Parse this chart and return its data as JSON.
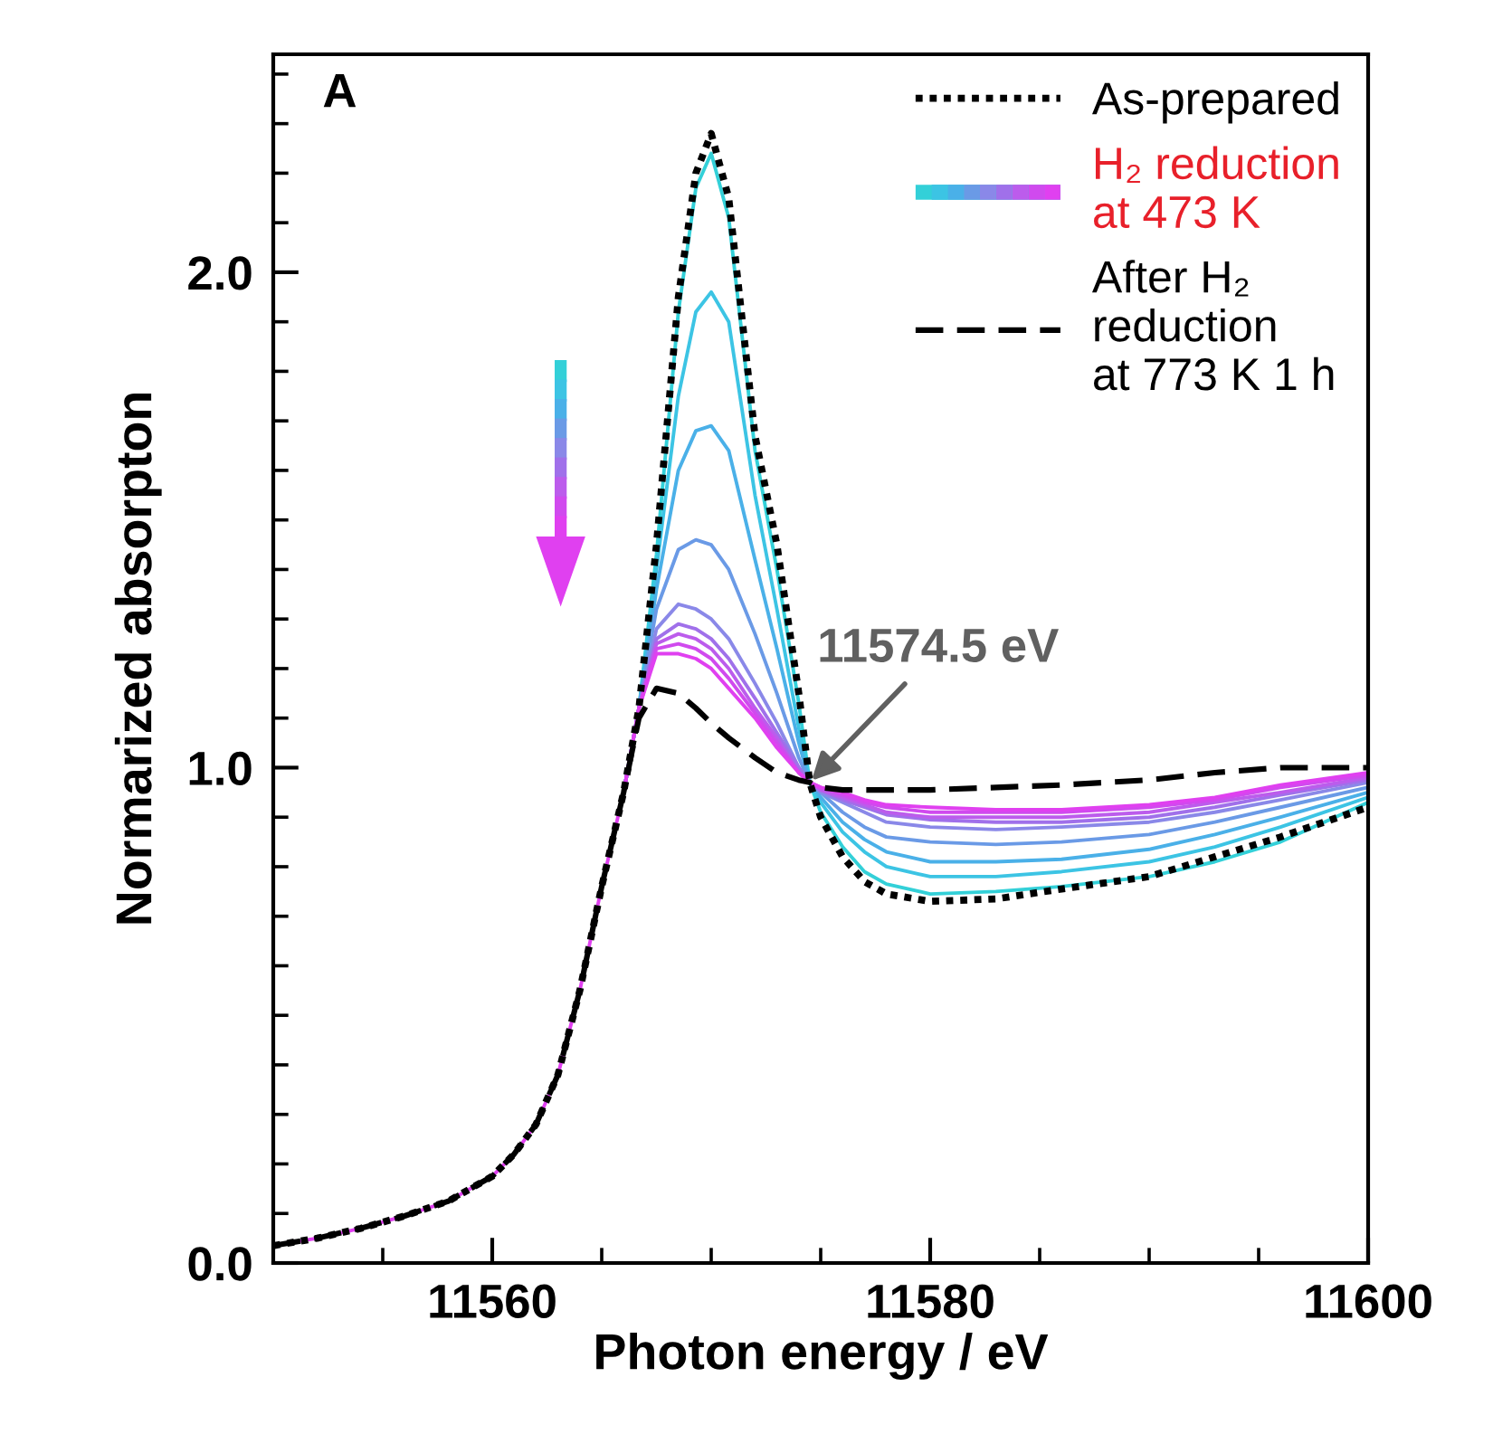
{
  "chart_data": {
    "type": "line",
    "xlabel": "Photon energy / eV",
    "ylabel": "Normarized absorpton",
    "x": [
      11550,
      11552,
      11554,
      11556,
      11558,
      11560,
      11561,
      11562,
      11563,
      11564,
      11565,
      11566,
      11566.7,
      11567.5,
      11568.5,
      11569.3,
      11570,
      11570.8,
      11572,
      11573,
      11574,
      11574.5,
      11575,
      11576,
      11577,
      11578,
      11580,
      11583,
      11586,
      11590,
      11593,
      11596,
      11600
    ],
    "series": [
      {
        "name": "As-prepared",
        "color": "#000000",
        "line_style": "dotted",
        "values": [
          0.035,
          0.05,
          0.07,
          0.095,
          0.125,
          0.175,
          0.22,
          0.28,
          0.38,
          0.55,
          0.76,
          0.95,
          1.12,
          1.45,
          1.95,
          2.2,
          2.28,
          2.15,
          1.67,
          1.45,
          1.15,
          0.97,
          0.9,
          0.82,
          0.77,
          0.745,
          0.73,
          0.735,
          0.755,
          0.78,
          0.82,
          0.86,
          0.92
        ]
      },
      {
        "name": "H₂ reduction\nat 473 K",
        "color": "#33d0d8",
        "line_style": "solid",
        "values": [
          null,
          null,
          null,
          null,
          null,
          null,
          null,
          null,
          null,
          null,
          null,
          0.95,
          1.12,
          1.43,
          1.92,
          2.17,
          2.24,
          2.11,
          1.64,
          1.4,
          1.13,
          0.97,
          0.91,
          0.84,
          0.79,
          0.765,
          0.745,
          0.75,
          0.76,
          0.78,
          0.81,
          0.85,
          0.93
        ]
      },
      {
        "color": "#3cc4e4",
        "line_style": "solid",
        "values": [
          null,
          null,
          null,
          null,
          null,
          null,
          null,
          null,
          null,
          null,
          null,
          0.95,
          1.12,
          1.4,
          1.75,
          1.92,
          1.96,
          1.9,
          1.55,
          1.32,
          1.08,
          0.97,
          0.93,
          0.87,
          0.83,
          0.8,
          0.78,
          0.78,
          0.79,
          0.81,
          0.84,
          0.88,
          0.94
        ]
      },
      {
        "color": "#4ab0e8",
        "line_style": "solid",
        "values": [
          null,
          null,
          null,
          null,
          null,
          null,
          null,
          null,
          null,
          null,
          null,
          0.95,
          1.12,
          1.36,
          1.6,
          1.68,
          1.69,
          1.64,
          1.42,
          1.24,
          1.05,
          0.97,
          0.94,
          0.89,
          0.855,
          0.83,
          0.81,
          0.81,
          0.815,
          0.835,
          0.865,
          0.9,
          0.95
        ]
      },
      {
        "color": "#6a9ae6",
        "line_style": "solid",
        "values": [
          null,
          null,
          null,
          null,
          null,
          null,
          null,
          null,
          null,
          null,
          null,
          0.95,
          1.12,
          1.32,
          1.44,
          1.46,
          1.45,
          1.4,
          1.27,
          1.15,
          1.02,
          0.97,
          0.95,
          0.91,
          0.88,
          0.86,
          0.85,
          0.845,
          0.85,
          0.865,
          0.89,
          0.92,
          0.96
        ]
      },
      {
        "color": "#8a88e8",
        "line_style": "solid",
        "values": [
          null,
          null,
          null,
          null,
          null,
          null,
          null,
          null,
          null,
          null,
          null,
          0.95,
          1.12,
          1.28,
          1.33,
          1.32,
          1.3,
          1.26,
          1.17,
          1.09,
          1.0,
          0.97,
          0.95,
          0.93,
          0.91,
          0.89,
          0.88,
          0.875,
          0.88,
          0.89,
          0.91,
          0.935,
          0.97
        ]
      },
      {
        "color": "#a070ea",
        "line_style": "solid",
        "values": [
          null,
          null,
          null,
          null,
          null,
          null,
          null,
          null,
          null,
          null,
          null,
          0.95,
          1.12,
          1.26,
          1.29,
          1.28,
          1.26,
          1.22,
          1.14,
          1.07,
          1.0,
          0.97,
          0.955,
          0.935,
          0.92,
          0.905,
          0.895,
          0.89,
          0.89,
          0.9,
          0.92,
          0.945,
          0.975
        ]
      },
      {
        "color": "#bc5cec",
        "line_style": "solid",
        "values": [
          null,
          null,
          null,
          null,
          null,
          null,
          null,
          null,
          null,
          null,
          null,
          0.95,
          1.12,
          1.25,
          1.27,
          1.26,
          1.24,
          1.2,
          1.12,
          1.06,
          0.99,
          0.97,
          0.955,
          0.94,
          0.925,
          0.91,
          0.9,
          0.9,
          0.9,
          0.91,
          0.93,
          0.95,
          0.98
        ]
      },
      {
        "color": "#d04aee",
        "line_style": "solid",
        "values": [
          null,
          null,
          null,
          null,
          null,
          null,
          null,
          null,
          null,
          null,
          null,
          0.95,
          1.12,
          1.24,
          1.25,
          1.24,
          1.22,
          1.18,
          1.11,
          1.05,
          0.99,
          0.97,
          0.96,
          0.945,
          0.93,
          0.92,
          0.91,
          0.91,
          0.91,
          0.92,
          0.935,
          0.96,
          0.985
        ]
      },
      {
        "color": "#e040f0",
        "line_style": "solid",
        "values": [
          0.035,
          0.05,
          0.07,
          0.095,
          0.125,
          0.175,
          0.22,
          0.28,
          0.38,
          0.55,
          0.76,
          0.95,
          1.12,
          1.23,
          1.23,
          1.22,
          1.2,
          1.16,
          1.1,
          1.04,
          0.99,
          0.97,
          0.96,
          0.95,
          0.935,
          0.925,
          0.92,
          0.915,
          0.915,
          0.925,
          0.94,
          0.965,
          0.99
        ]
      },
      {
        "name": "After H₂\nreduction\nat 773 K 1 h",
        "color": "#000000",
        "line_style": "dashed",
        "values": [
          0.035,
          0.05,
          0.07,
          0.095,
          0.125,
          0.175,
          0.22,
          0.28,
          0.38,
          0.55,
          0.76,
          0.95,
          1.1,
          1.16,
          1.15,
          1.12,
          1.09,
          1.06,
          1.02,
          0.99,
          0.975,
          0.97,
          0.96,
          0.955,
          0.955,
          0.955,
          0.955,
          0.96,
          0.965,
          0.975,
          0.99,
          1.0,
          1.0
        ]
      }
    ],
    "xlim": [
      11550,
      11600
    ],
    "xticks": [
      {
        "value": 11555,
        "label": null
      },
      {
        "value": 11560,
        "label": "11560"
      },
      {
        "value": 11565,
        "label": null
      },
      {
        "value": 11570,
        "label": null
      },
      {
        "value": 11575,
        "label": null
      },
      {
        "value": 11580,
        "label": "11580"
      },
      {
        "value": 11585,
        "label": null
      },
      {
        "value": 11590,
        "label": null
      },
      {
        "value": 11595,
        "label": null
      },
      {
        "value": 11600,
        "label": "11600"
      }
    ],
    "ylim": [
      0,
      2.44
    ],
    "yticks": [
      {
        "value": 0,
        "label": "0.0"
      },
      {
        "value": 0.1,
        "label": null
      },
      {
        "value": 0.2,
        "label": null
      },
      {
        "value": 0.3,
        "label": null
      },
      {
        "value": 0.4,
        "label": null
      },
      {
        "value": 0.5,
        "label": null
      },
      {
        "value": 0.6,
        "label": null
      },
      {
        "value": 0.7,
        "label": null
      },
      {
        "value": 0.8,
        "label": null
      },
      {
        "value": 0.9,
        "label": null
      },
      {
        "value": 1,
        "label": "1.0"
      },
      {
        "value": 1.1,
        "label": null
      },
      {
        "value": 1.2,
        "label": null
      },
      {
        "value": 1.3,
        "label": null
      },
      {
        "value": 1.4,
        "label": null
      },
      {
        "value": 1.5,
        "label": null
      },
      {
        "value": 1.6,
        "label": null
      },
      {
        "value": 1.7,
        "label": null
      },
      {
        "value": 1.8,
        "label": null
      },
      {
        "value": 1.9,
        "label": null
      },
      {
        "value": 2,
        "label": "2.0"
      },
      {
        "value": 2.1,
        "label": null
      },
      {
        "value": 2.2,
        "label": null
      },
      {
        "value": 2.3,
        "label": null
      },
      {
        "value": 2.4,
        "label": null
      }
    ],
    "grid": false,
    "legend": "top right",
    "annotations": [
      "A",
      {
        "text": "11574.5 eV",
        "x": 11574.5,
        "y": 0.97
      }
    ]
  }
}
